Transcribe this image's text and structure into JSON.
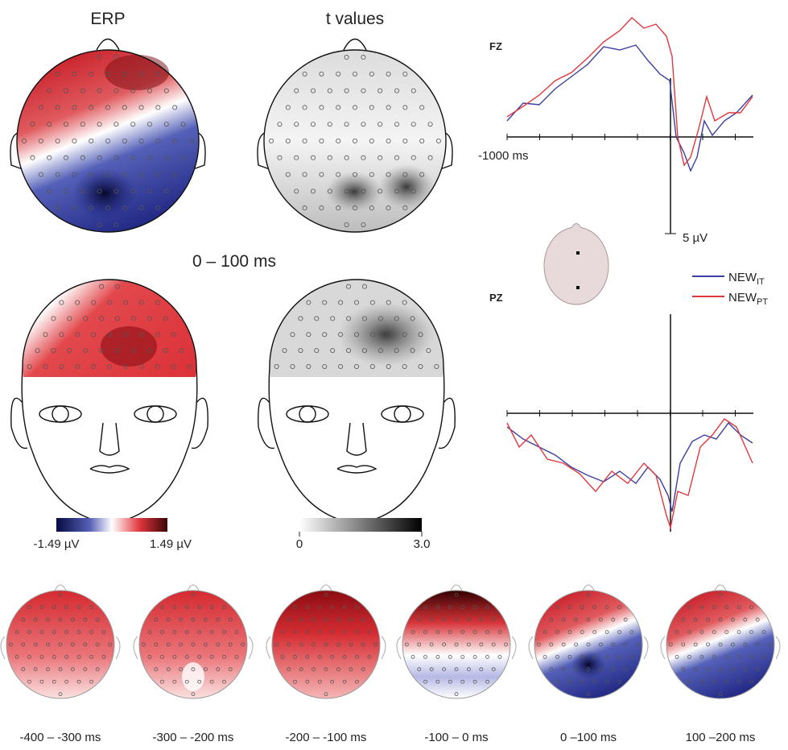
{
  "figure": {
    "panel_titles": {
      "erp": "ERP",
      "t": "t values"
    },
    "window_label": "0 – 100 ms",
    "erp_colorbar": {
      "min_label": "-1.49 µV",
      "max_label": "1.49 µV"
    },
    "t_colorbar": {
      "min_label": "0",
      "max_label": "3.0"
    },
    "waveforms": {
      "fz_label": "FZ",
      "pz_label": "PZ",
      "time_label": "-1000 ms",
      "amp_label": "5 µV",
      "legend": [
        {
          "base": "NEW",
          "sub": "IT",
          "color": "#3b3fa0"
        },
        {
          "base": "NEW",
          "sub": "PT",
          "color": "#e0383e"
        }
      ]
    },
    "time_windows": [
      "-400 – -300 ms",
      "-300 – -200 ms",
      "-200 – -100 ms",
      "-100 – 0 ms",
      "0 –100 ms",
      "100 –200 ms"
    ]
  }
}
